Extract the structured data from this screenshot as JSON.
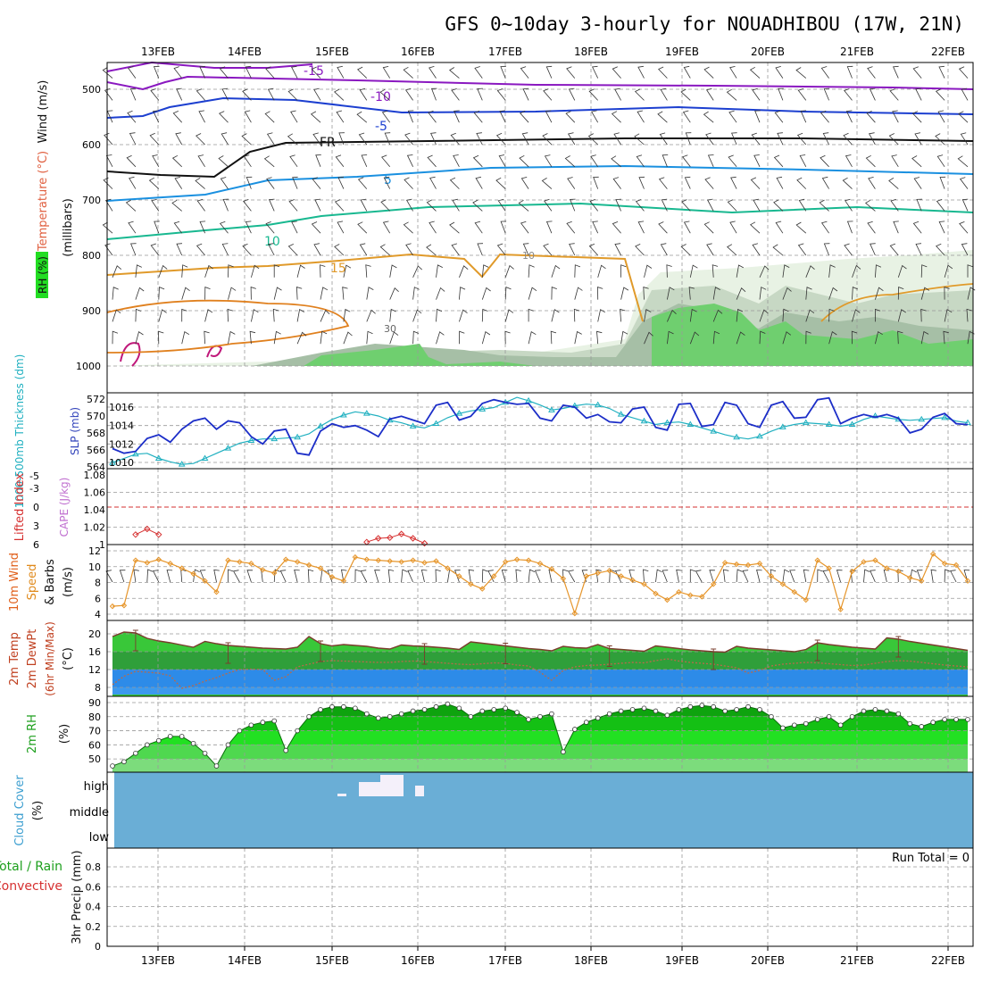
{
  "title": "GFS 0~10day 3-hourly for NOUADHIBOU (17W, 21N)",
  "dates": [
    "13FEB",
    "14FEB",
    "15FEB",
    "16FEB",
    "17FEB",
    "18FEB",
    "19FEB",
    "20FEB",
    "21FEB",
    "22FEB"
  ],
  "colors": {
    "purple": "#8a18c0",
    "blue": "#1c3fd0",
    "black": "#111111",
    "sky": "#1a90e0",
    "teal": "#18b890",
    "orange": "#e09a2a",
    "red": "#d63030",
    "magenta": "#c0187a",
    "slp": "#1c2ec8",
    "thick": "#20b0c0",
    "windspd": "#e6952a",
    "tempfill": "#39c739",
    "dewfill": "#2d8be8",
    "rhfill": "#22dd22",
    "cloud": "#6aaed6",
    "precip_text": "#000000"
  },
  "chart_data": [
    {
      "type": "contour",
      "name": "upper-air",
      "ylabel_parts": [
        "RH (%)",
        "Temperature (°C)",
        "Wind (m/s)"
      ],
      "ylabel_sub": "(millibars)",
      "yticks": [
        500,
        600,
        700,
        800,
        900,
        1000
      ],
      "ylim": [
        1000,
        450
      ],
      "isotherms": [
        {
          "label": "-15",
          "level_start": 500,
          "level_end": 462,
          "color": "purple"
        },
        {
          "label": "-10",
          "level_start": 492,
          "level_end": 500,
          "color": "purple"
        },
        {
          "label": "-5",
          "level_start": 560,
          "level_end": 540,
          "color": "blue"
        },
        {
          "label": "FR",
          "level_start": 650,
          "level_end": 608,
          "color": "black"
        },
        {
          "label": "5",
          "level_start": 700,
          "level_end": 650,
          "color": "sky"
        },
        {
          "label": "10",
          "level_start": 770,
          "level_end": 720,
          "color": "teal"
        },
        {
          "label": "15",
          "level_start": 840,
          "level_end": 820,
          "color": "orange"
        }
      ],
      "rh_labels": [
        "10",
        "30"
      ]
    },
    {
      "type": "line",
      "name": "slp-thickness",
      "ylabel_left": "1000-500mb Thickness (dm)",
      "ylabel_right": "SLP (mb)",
      "yticks_left": [
        564,
        566,
        568,
        570,
        572
      ],
      "yticks_right": [
        1010,
        1012,
        1014,
        1016
      ],
      "ylim_slp": [
        1009.5,
        1017.5
      ],
      "series": [
        {
          "key": "slp",
          "values": [
            1011.5,
            1011,
            1011.2,
            1012.6,
            1013,
            1012.2,
            1013.6,
            1014.5,
            1014.8,
            1013.6,
            1014.5,
            1014.3,
            1012.8,
            1012,
            1013.4,
            1013.6,
            1011,
            1010.8,
            1013.4,
            1014.2,
            1013.8,
            1014,
            1013.5,
            1012.8,
            1014.7,
            1015,
            1014.6,
            1014.2,
            1016.2,
            1016.5,
            1014.6,
            1015,
            1016.4,
            1016.8,
            1016.5,
            1016.3,
            1016.4,
            1014.8,
            1014.5,
            1016.2,
            1016,
            1014.8,
            1015.2,
            1014.4,
            1014.3,
            1015.8,
            1016,
            1013.8,
            1013.5,
            1016.3,
            1016.4,
            1013.9,
            1014.1,
            1016.5,
            1016.2,
            1014.2,
            1013.8,
            1016.2,
            1016.6,
            1014.8,
            1014.9,
            1016.8,
            1017,
            1014.2,
            1014.8,
            1015.2,
            1014.9,
            1015.2,
            1014.8,
            1013.2,
            1013.6,
            1014.9,
            1015.3,
            1014.2,
            1014.1
          ]
        },
        {
          "key": "thick",
          "values": [
            564.5,
            565,
            565.5,
            565.6,
            565,
            564.6,
            564.3,
            564.4,
            565,
            565.6,
            566.2,
            566.8,
            567.1,
            567.3,
            567.3,
            567.4,
            567.5,
            567.9,
            568.8,
            569.6,
            570.1,
            570.5,
            570.3,
            570.0,
            569.5,
            569.2,
            568.8,
            568.6,
            569.1,
            569.8,
            570.3,
            570.6,
            570.8,
            571.0,
            571.6,
            572.2,
            571.8,
            571.3,
            570.7,
            570.9,
            571.2,
            571.4,
            571.3,
            570.9,
            570.2,
            569.8,
            569.4,
            569.0,
            569.2,
            569.3,
            569.0,
            568.6,
            568.2,
            567.8,
            567.5,
            567.3,
            567.6,
            568.2,
            568.7,
            569.0,
            569.2,
            569.1,
            569.0,
            568.8,
            569.0,
            569.6,
            570.0,
            569.8,
            569.6,
            569.5,
            569.6,
            569.7,
            569.8,
            569.4,
            569.2
          ]
        }
      ]
    },
    {
      "type": "line",
      "name": "lifted-index-cape",
      "ylabel_left": "Lifted Index",
      "ylabel_right": "CAPE (J/kg)",
      "yticks_left": [
        -5,
        -3,
        0,
        3,
        6
      ],
      "yticks_right": [
        1,
        1.02,
        1.04,
        1.06,
        1.08
      ],
      "ylim_li": [
        6,
        -6
      ],
      "li_values": [
        {
          "i": 2,
          "v": 4.4
        },
        {
          "i": 3,
          "v": 3.5
        },
        {
          "i": 4,
          "v": 4.4
        },
        {
          "i": 22,
          "v": 5.6
        },
        {
          "i": 23,
          "v": 5.0
        },
        {
          "i": 24,
          "v": 4.9
        },
        {
          "i": 25,
          "v": 4.3
        },
        {
          "i": 26,
          "v": 5.0
        },
        {
          "i": 27,
          "v": 5.8
        }
      ]
    },
    {
      "type": "line",
      "name": "10m-wind",
      "ylabel": "10m Wind Speed & Barbs (m/s)",
      "yticks": [
        4,
        6,
        8,
        10,
        12
      ],
      "ylim": [
        3.5,
        12.5
      ],
      "series": [
        {
          "key": "windspd",
          "values": [
            5,
            5.1,
            10.8,
            10.5,
            10.9,
            10.4,
            9.8,
            9.1,
            8.2,
            6.8,
            10.8,
            10.6,
            10.4,
            9.6,
            9.2,
            10.9,
            10.6,
            10.2,
            9.8,
            8.7,
            8.2,
            11.2,
            10.9,
            10.8,
            10.7,
            10.6,
            10.8,
            10.5,
            10.7,
            9.8,
            8.8,
            7.8,
            7.2,
            8.8,
            10.6,
            10.9,
            10.8,
            10.4,
            9.7,
            8.5,
            4.1,
            8.8,
            9.2,
            9.5,
            8.8,
            8.3,
            7.8,
            6.6,
            5.8,
            6.8,
            6.4,
            6.2,
            7.8,
            10.5,
            10.3,
            10.2,
            10.4,
            8.8,
            7.8,
            6.8,
            5.8,
            10.8,
            9.8,
            4.6,
            9.4,
            10.6,
            10.8,
            9.8,
            9.4,
            8.6,
            8.2,
            11.6,
            10.4,
            10.2,
            8.2
          ]
        }
      ]
    },
    {
      "type": "area",
      "name": "2m-temp-dewpt",
      "ylabel": "2m Temp 2m DewPt (6hr Min/Max) (°C)",
      "yticks": [
        8,
        12,
        16,
        20
      ],
      "ylim": [
        5.5,
        22.5
      ],
      "series": [
        {
          "key": "temp",
          "values": [
            19.4,
            20.4,
            20.2,
            19.0,
            18.4,
            18.0,
            17.5,
            17.0,
            18.3,
            17.8,
            17.4,
            17.2,
            17.0,
            16.8,
            16.7,
            16.6,
            17.0,
            19.4,
            17.8,
            17.3,
            17.6,
            17.4,
            17.2,
            16.8,
            16.6,
            17.5,
            17.3,
            17.2,
            17.0,
            16.8,
            16.5,
            18.2,
            17.9,
            17.6,
            17.3,
            17.0,
            16.7,
            16.5,
            16.2,
            17.2,
            16.9,
            16.8,
            17.6,
            16.7,
            16.5,
            16.3,
            16.1,
            17.3,
            17.0,
            16.7,
            16.4,
            16.2,
            16.0,
            15.9,
            17.2,
            16.8,
            16.6,
            16.4,
            16.2,
            16.0,
            16.5,
            18.0,
            17.6,
            17.3,
            17.0,
            16.8,
            16.6,
            19.1,
            18.8,
            18.3,
            17.9,
            17.5,
            17.1,
            16.7,
            16.3
          ]
        },
        {
          "key": "dew",
          "values": [
            8.6,
            10.5,
            11.6,
            11.4,
            11.2,
            10.6,
            7.8,
            8.4,
            9.4,
            10.2,
            11.2,
            12.0,
            12.1,
            12.0,
            9.6,
            10.4,
            12.6,
            13.2,
            13.8,
            14.0,
            13.9,
            13.8,
            13.7,
            13.6,
            13.6,
            13.8,
            13.9,
            13.8,
            13.6,
            13.4,
            13.2,
            13.1,
            13.3,
            13.5,
            13.4,
            13.0,
            12.8,
            11.4,
            9.6,
            11.8,
            12.6,
            12.9,
            13.0,
            13.2,
            13.4,
            13.6,
            13.5,
            14.0,
            14.4,
            13.9,
            13.6,
            13.4,
            13.2,
            12.8,
            12.4,
            11.2,
            11.8,
            12.8,
            13.2,
            13.4,
            13.6,
            13.5,
            13.3,
            13.1,
            12.9,
            13.0,
            13.4,
            13.8,
            14.0,
            13.9,
            13.6,
            13.3,
            13.0,
            12.8,
            12.6
          ]
        }
      ]
    },
    {
      "type": "area",
      "name": "2m-rh",
      "ylabel": "2m RH (%)",
      "yticks": [
        50,
        60,
        70,
        80,
        90
      ],
      "ylim": [
        42,
        92
      ],
      "series": [
        {
          "key": "rh",
          "values": [
            45,
            48,
            54,
            60,
            63,
            66,
            66,
            61,
            54,
            45,
            60,
            70,
            74,
            76,
            77,
            56,
            70,
            80,
            85,
            87,
            87,
            86,
            82,
            79,
            80,
            82,
            84,
            85,
            87,
            89,
            86,
            80,
            84,
            85,
            86,
            83,
            78,
            80,
            82,
            55,
            71,
            76,
            79,
            82,
            84,
            85,
            86,
            84,
            81,
            85,
            87,
            88,
            87,
            84,
            85,
            87,
            85,
            80,
            72,
            74,
            75,
            78,
            80,
            74,
            80,
            84,
            85,
            84,
            82,
            75,
            73,
            76,
            78,
            78,
            78
          ]
        }
      ]
    },
    {
      "type": "area",
      "name": "cloud-cover",
      "ylabel": "Cloud Cover (%)",
      "ytick_labels": [
        "high",
        "middle",
        "low"
      ]
    },
    {
      "type": "bar",
      "name": "3hr-precip",
      "ylabel_left": "Total / Rain",
      "ylabel_left2": "Convective",
      "ylabel": "3hr Precip (mm)",
      "yticks": [
        0,
        0.2,
        0.4,
        0.6,
        0.8
      ],
      "ylim": [
        0,
        1
      ],
      "values": [],
      "run_total": "Run Total = 0"
    }
  ]
}
